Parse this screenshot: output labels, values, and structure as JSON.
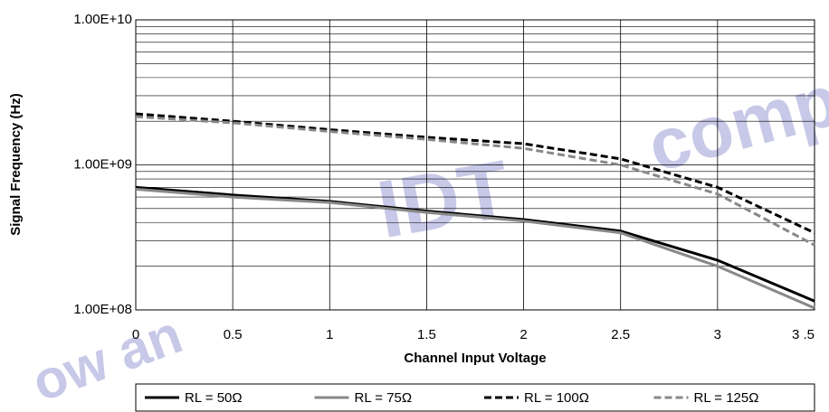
{
  "chart_data": {
    "type": "line",
    "xlabel": "Channel Input Voltage",
    "ylabel": "Signal Frequency (Hz)",
    "x": [
      0,
      0.5,
      1,
      1.5,
      2,
      2.5,
      3,
      3.5
    ],
    "xlim": [
      0,
      3.5
    ],
    "xticks": [
      0,
      0.5,
      1,
      1.5,
      2,
      2.5,
      3,
      {
        "value": 3.5,
        "label": "3 .5"
      }
    ],
    "ylim": [
      100000000,
      10000000000
    ],
    "yticks": [
      {
        "value": 100000000,
        "label": "1.00E+08"
      },
      {
        "value": 1000000000,
        "label": "1.00E+09"
      },
      {
        "value": 10000000000,
        "label": "1.00E+10"
      }
    ],
    "log_y": true,
    "grid": true,
    "minor_grid": true,
    "legend": "bottom",
    "series": [
      {
        "name": "RL = 50Ω",
        "color": "#000000",
        "dash": false,
        "values": [
          700000000,
          620000000,
          560000000,
          480000000,
          420000000,
          350000000,
          220000000,
          115000000
        ]
      },
      {
        "name": "RL = 75Ω",
        "color": "#888888",
        "dash": false,
        "values": [
          680000000,
          600000000,
          550000000,
          470000000,
          410000000,
          340000000,
          200000000,
          103000000
        ]
      },
      {
        "name": "RL = 100Ω",
        "color": "#000000",
        "dash": true,
        "values": [
          2250000000,
          2000000000,
          1750000000,
          1550000000,
          1400000000,
          1100000000,
          700000000,
          340000000
        ]
      },
      {
        "name": "RL = 125Ω",
        "color": "#888888",
        "dash": true,
        "values": [
          2150000000,
          1950000000,
          1700000000,
          1500000000,
          1300000000,
          1000000000,
          630000000,
          280000000
        ]
      }
    ],
    "watermark": [
      "ow an",
      "IDT",
      "comp"
    ]
  }
}
